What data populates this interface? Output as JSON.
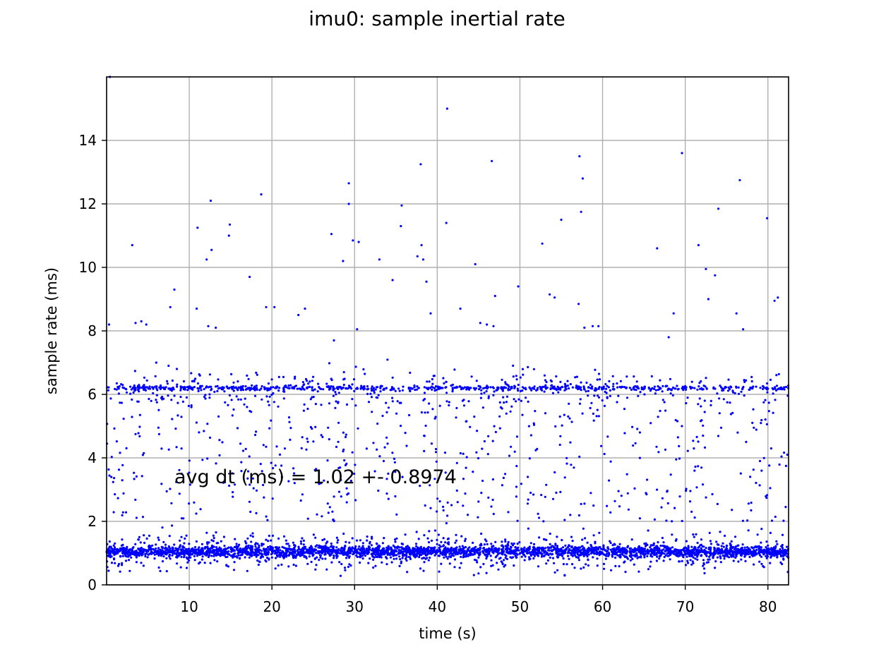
{
  "chart_data": {
    "type": "scatter",
    "title": "imu0: sample inertial rate",
    "xlabel": "time (s)",
    "ylabel": "sample rate (ms)",
    "xlim": [
      0,
      82.5
    ],
    "ylim": [
      0,
      16
    ],
    "xticks": [
      10,
      20,
      30,
      40,
      50,
      60,
      70,
      80
    ],
    "yticks": [
      0,
      2,
      4,
      6,
      8,
      10,
      12,
      14
    ],
    "grid": true,
    "marker_color": "#0000ff",
    "annotation": {
      "text": "avg dt (ms) = 1.02 +- 0.8974",
      "x": 8.2,
      "y": 3.2
    },
    "points": [
      [
        0.4,
        16.0
      ],
      [
        41.2,
        15.0
      ],
      [
        69.6,
        13.6
      ],
      [
        57.2,
        13.5
      ],
      [
        46.6,
        13.35
      ],
      [
        38.0,
        13.25
      ],
      [
        57.6,
        12.8
      ],
      [
        76.6,
        12.75
      ],
      [
        29.3,
        12.65
      ],
      [
        18.7,
        12.3
      ],
      [
        12.6,
        12.1
      ],
      [
        29.3,
        12.0
      ],
      [
        35.7,
        11.95
      ],
      [
        74.0,
        11.85
      ],
      [
        57.4,
        11.75
      ],
      [
        79.9,
        11.55
      ],
      [
        55.0,
        11.5
      ],
      [
        41.1,
        11.4
      ],
      [
        14.9,
        11.35
      ],
      [
        35.6,
        11.3
      ],
      [
        11.0,
        11.25
      ],
      [
        27.2,
        11.05
      ],
      [
        14.8,
        11.0
      ],
      [
        29.8,
        10.85
      ],
      [
        30.5,
        10.8
      ],
      [
        52.7,
        10.75
      ],
      [
        3.1,
        10.7
      ],
      [
        38.1,
        10.7
      ],
      [
        71.6,
        10.7
      ],
      [
        66.6,
        10.6
      ],
      [
        12.7,
        10.55
      ],
      [
        37.6,
        10.35
      ],
      [
        12.1,
        10.25
      ],
      [
        33.0,
        10.25
      ],
      [
        38.3,
        10.25
      ],
      [
        28.6,
        10.2
      ],
      [
        44.6,
        10.1
      ],
      [
        72.5,
        9.95
      ],
      [
        73.6,
        9.75
      ],
      [
        17.3,
        9.7
      ],
      [
        34.6,
        9.6
      ],
      [
        38.7,
        9.55
      ],
      [
        49.8,
        9.4
      ],
      [
        8.2,
        9.3
      ],
      [
        53.6,
        9.15
      ],
      [
        47.0,
        9.1
      ],
      [
        81.2,
        9.05
      ],
      [
        54.2,
        9.05
      ],
      [
        72.8,
        9.0
      ],
      [
        80.8,
        8.95
      ],
      [
        57.1,
        8.85
      ],
      [
        7.7,
        8.75
      ],
      [
        19.3,
        8.75
      ],
      [
        20.3,
        8.75
      ],
      [
        24.0,
        8.7
      ],
      [
        42.8,
        8.7
      ],
      [
        76.2,
        8.55
      ],
      [
        68.6,
        8.55
      ],
      [
        10.9,
        8.7
      ],
      [
        4.2,
        8.3
      ],
      [
        3.5,
        8.25
      ],
      [
        23.2,
        8.5
      ],
      [
        4.8,
        8.2
      ],
      [
        45.2,
        8.25
      ],
      [
        58.8,
        8.15
      ],
      [
        59.5,
        8.15
      ],
      [
        0.3,
        8.2
      ],
      [
        12.3,
        8.15
      ],
      [
        13.2,
        8.1
      ],
      [
        39.2,
        8.55
      ],
      [
        30.3,
        8.05
      ],
      [
        46.8,
        8.15
      ],
      [
        57.8,
        8.1
      ],
      [
        77.0,
        8.05
      ],
      [
        46.0,
        8.2
      ],
      [
        27.5,
        7.7
      ],
      [
        68.0,
        7.8
      ],
      [
        6.0,
        7.0
      ],
      [
        7.5,
        6.9
      ],
      [
        8.5,
        6.8
      ]
    ],
    "band_high": {
      "center": 6.2,
      "spread": 0.9
    },
    "band_low": {
      "center": 1.05,
      "spread": 1.0
    }
  }
}
